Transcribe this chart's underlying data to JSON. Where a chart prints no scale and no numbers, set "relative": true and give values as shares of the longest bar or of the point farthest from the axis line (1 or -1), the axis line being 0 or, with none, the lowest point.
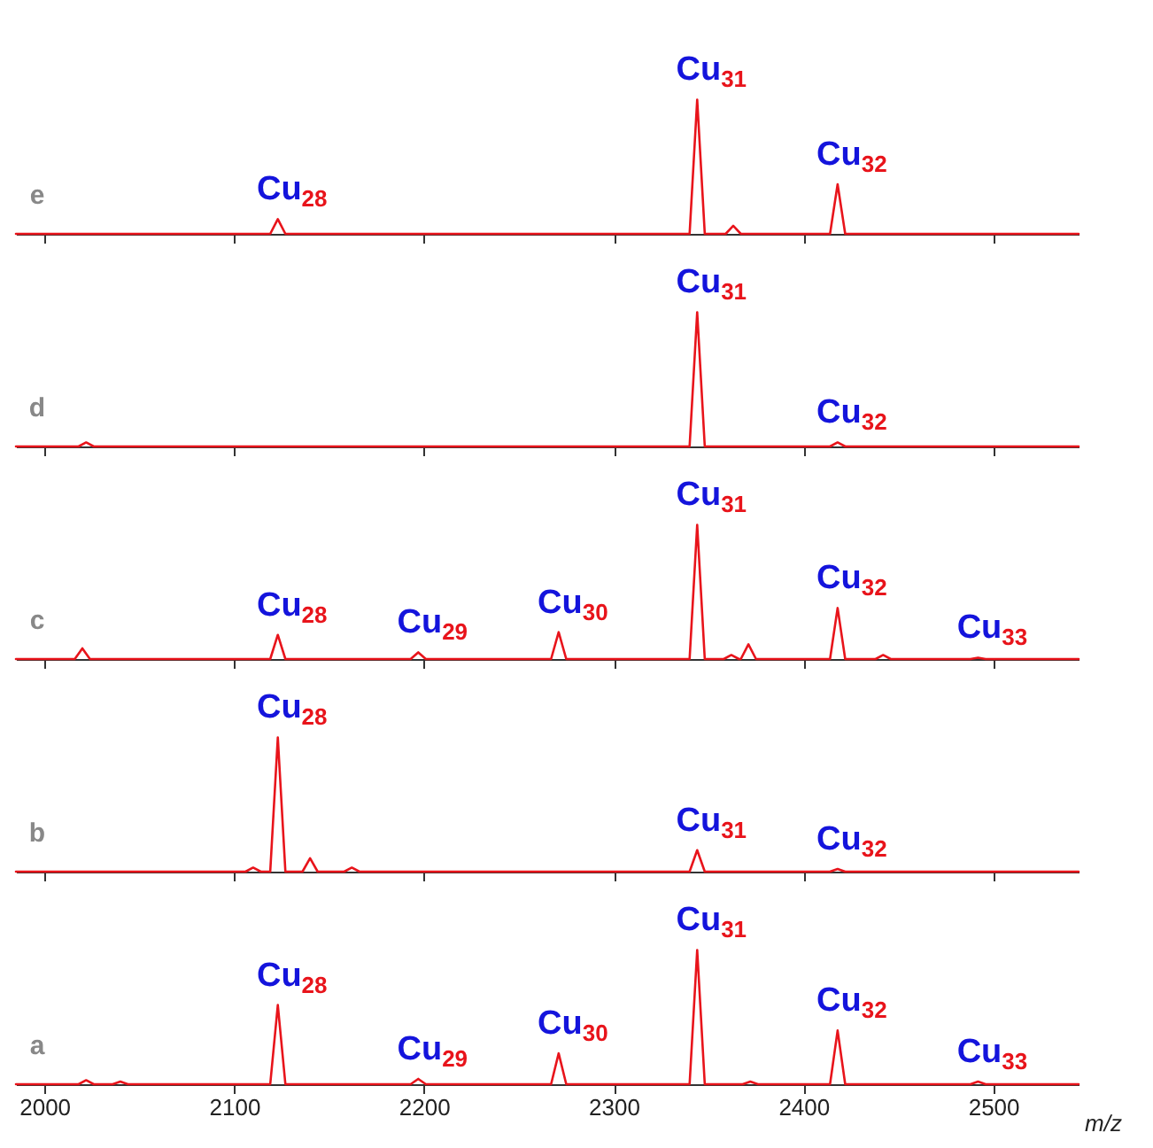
{
  "chart_data": [
    {
      "type": "line",
      "title": "e",
      "relative": true,
      "tick_labels": false,
      "xlim": [
        1985,
        2545
      ],
      "xticks": [
        2000,
        2100,
        2200,
        2300,
        2400,
        2500
      ],
      "x": [
        1985,
        2119,
        2123,
        2127,
        2340,
        2344,
        2348,
        2359,
        2363,
        2367,
        2414,
        2418,
        2422,
        2545
      ],
      "series": [
        {
          "color": "#e8141b",
          "values": [
            0,
            0,
            0.11,
            0,
            0,
            1,
            0,
            0,
            0.06,
            0,
            0,
            0.37,
            0,
            0
          ]
        }
      ],
      "annotations": [
        {
          "text": "Cu$_{28}$",
          "x": 2123,
          "y": 0.11
        },
        {
          "text": "Cu$_{31}$",
          "x": 2344,
          "y": 1
        },
        {
          "text": "Cu$_{32}$",
          "x": 2418,
          "y": 0.37
        }
      ]
    },
    {
      "type": "line",
      "title": "d",
      "relative": true,
      "tick_labels": false,
      "xlim": [
        1985,
        2545
      ],
      "xticks": [
        2000,
        2100,
        2200,
        2300,
        2400,
        2500
      ],
      "x": [
        1985,
        2018,
        2022,
        2026,
        2340,
        2344,
        2348,
        2414,
        2418,
        2422,
        2545
      ],
      "series": [
        {
          "color": "#e8141b",
          "values": [
            0,
            0,
            0.03,
            0,
            0,
            1,
            0,
            0,
            0.03,
            0,
            0
          ]
        }
      ],
      "annotations": [
        {
          "text": "Cu$_{31}$",
          "x": 2344,
          "y": 1
        },
        {
          "text": "Cu$_{32}$",
          "x": 2418,
          "y": 0.03
        }
      ]
    },
    {
      "type": "line",
      "title": "c",
      "relative": true,
      "tick_labels": false,
      "xlim": [
        1985,
        2545
      ],
      "xticks": [
        2000,
        2100,
        2200,
        2300,
        2400,
        2500
      ],
      "x": [
        1985,
        2016,
        2020,
        2024,
        2119,
        2123,
        2127,
        2193,
        2197,
        2201,
        2267,
        2271,
        2275,
        2340,
        2344,
        2348,
        2358,
        2362,
        2366,
        2367,
        2371,
        2375,
        2414,
        2418,
        2422,
        2438,
        2442,
        2446,
        2488,
        2492,
        2496,
        2545
      ],
      "series": [
        {
          "color": "#e8141b",
          "values": [
            0,
            0,
            0.08,
            0,
            0,
            0.18,
            0,
            0,
            0.05,
            0,
            0,
            0.2,
            0,
            0,
            1,
            0,
            0,
            0.03,
            0,
            0,
            0.11,
            0,
            0,
            0.38,
            0,
            0,
            0.03,
            0,
            0,
            0.01,
            0,
            0
          ]
        }
      ],
      "annotations": [
        {
          "text": "Cu$_{28}$",
          "x": 2123,
          "y": 0.18
        },
        {
          "text": "Cu$_{29}$",
          "x": 2197,
          "y": 0.05
        },
        {
          "text": "Cu$_{30}$",
          "x": 2271,
          "y": 0.2
        },
        {
          "text": "Cu$_{31}$",
          "x": 2344,
          "y": 1
        },
        {
          "text": "Cu$_{32}$",
          "x": 2418,
          "y": 0.38
        },
        {
          "text": "Cu$_{33}$",
          "x": 2492,
          "y": 0.01
        }
      ]
    },
    {
      "type": "line",
      "title": "b",
      "relative": true,
      "tick_labels": false,
      "xlim": [
        1985,
        2545
      ],
      "xticks": [
        2000,
        2100,
        2200,
        2300,
        2400,
        2500
      ],
      "x": [
        1985,
        2106,
        2110,
        2114,
        2119,
        2123,
        2127,
        2136,
        2140,
        2144,
        2158,
        2162,
        2166,
        2340,
        2344,
        2348,
        2414,
        2418,
        2422,
        2545
      ],
      "series": [
        {
          "color": "#e8141b",
          "values": [
            0,
            0,
            0.03,
            0,
            0,
            1,
            0,
            0,
            0.1,
            0,
            0,
            0.03,
            0,
            0,
            0.16,
            0,
            0,
            0.02,
            0,
            0
          ]
        }
      ],
      "annotations": [
        {
          "text": "Cu$_{28}$",
          "x": 2123,
          "y": 1
        },
        {
          "text": "Cu$_{31}$",
          "x": 2344,
          "y": 0.16
        },
        {
          "text": "Cu$_{32}$",
          "x": 2418,
          "y": 0.02
        }
      ]
    },
    {
      "type": "line",
      "title": "a",
      "relative": true,
      "tick_labels": "x",
      "xlabel": "m/z",
      "xlim": [
        1985,
        2545
      ],
      "xticks": [
        2000,
        2100,
        2200,
        2300,
        2400,
        2500
      ],
      "x": [
        1985,
        2018,
        2022,
        2026,
        2036,
        2040,
        2044,
        2119,
        2123,
        2127,
        2193,
        2197,
        2201,
        2267,
        2271,
        2275,
        2340,
        2344,
        2348,
        2368,
        2372,
        2376,
        2414,
        2418,
        2422,
        2488,
        2492,
        2496,
        2545
      ],
      "series": [
        {
          "color": "#e8141b",
          "values": [
            0,
            0,
            0.03,
            0,
            0,
            0.02,
            0,
            0,
            0.59,
            0,
            0,
            0.04,
            0,
            0,
            0.23,
            0,
            0,
            1,
            0,
            0,
            0.02,
            0,
            0,
            0.4,
            0,
            0,
            0.02,
            0,
            0
          ]
        }
      ],
      "annotations": [
        {
          "text": "Cu$_{28}$",
          "x": 2123,
          "y": 0.59
        },
        {
          "text": "Cu$_{29}$",
          "x": 2197,
          "y": 0.04
        },
        {
          "text": "Cu$_{30}$",
          "x": 2271,
          "y": 0.23
        },
        {
          "text": "Cu$_{31}$",
          "x": 2344,
          "y": 1
        },
        {
          "text": "Cu$_{32}$",
          "x": 2418,
          "y": 0.4
        },
        {
          "text": "Cu$_{33}$",
          "x": 2492,
          "y": 0.02
        }
      ]
    }
  ]
}
